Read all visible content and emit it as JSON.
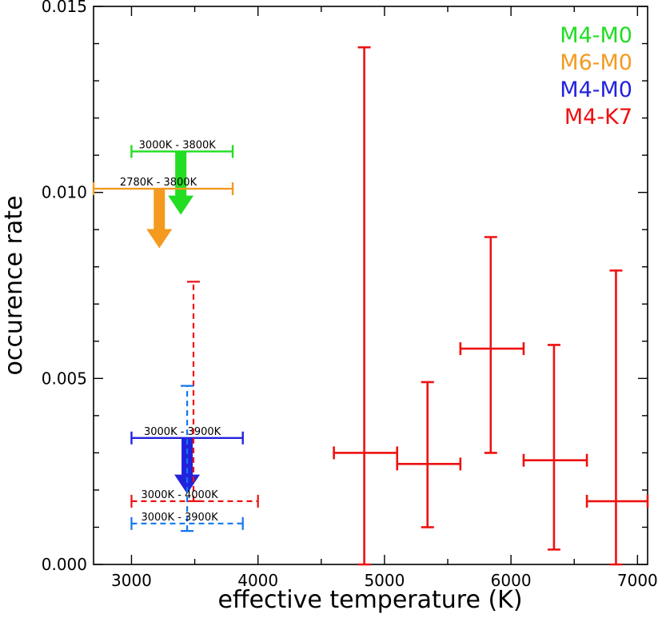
{
  "chart_data": {
    "type": "scatter",
    "xlabel": "effective temperature (K)",
    "ylabel": "occurence rate",
    "xlim": [
      2700,
      7080
    ],
    "ylim": [
      0.0,
      0.015
    ],
    "xticks": [
      {
        "v": 3000,
        "t": "3000"
      },
      {
        "v": 4000,
        "t": "4000"
      },
      {
        "v": 5000,
        "t": "5000"
      },
      {
        "v": 6000,
        "t": "6000"
      },
      {
        "v": 7000,
        "t": "7000"
      }
    ],
    "yticks": [
      {
        "v": 0.0,
        "t": "0.000"
      },
      {
        "v": 0.005,
        "t": "0.005"
      },
      {
        "v": 0.01,
        "t": "0.010"
      },
      {
        "v": 0.015,
        "t": "0.015"
      }
    ],
    "legend": [
      {
        "label": "M4-M0",
        "color": "#22dd22"
      },
      {
        "label": "M6-M0",
        "color": "#f49a1f"
      },
      {
        "label": "M4-M0",
        "color": "#2222dd"
      },
      {
        "label": "M4-K7",
        "color": "#ee1111"
      }
    ],
    "upper_limits": [
      {
        "name": "green",
        "label": "3000K - 3800K",
        "color": "#22dd22",
        "xmin": 3000,
        "xmax": 3800,
        "y": 0.0111,
        "arrow_x": 3390,
        "arrow_y_end": 0.0094
      },
      {
        "name": "orange",
        "label": "2780K - 3800K",
        "color": "#f49a1f",
        "xmin": 2700,
        "xmax": 3800,
        "y": 0.0101,
        "arrow_x": 3220,
        "arrow_y_end": 0.0085
      },
      {
        "name": "blue",
        "label": "3000K - 3900K",
        "color": "#2222dd",
        "xmin": 3000,
        "xmax": 3880,
        "y": 0.0034,
        "arrow_x": 3440,
        "arrow_y_end": 0.0019
      }
    ],
    "dashed_points": [
      {
        "name": "red-dashed",
        "label": "3000K - 4000K",
        "color": "#ee1111",
        "x": 3490,
        "y": 0.0017,
        "xmin": 3000,
        "xmax": 4000,
        "ylo": 0.0017,
        "yhi": 0.0076,
        "label_x": 3000
      },
      {
        "name": "lightblue-dashed",
        "label": "3000K - 3900K",
        "color": "#1177ee",
        "x": 3440,
        "y": 0.0011,
        "xmin": 3000,
        "xmax": 3880,
        "ylo": 0.0009,
        "yhi": 0.0048,
        "label_x": 3000
      }
    ],
    "series": [
      {
        "name": "M4-K7",
        "color": "#ee1111",
        "points": [
          {
            "x": 4840,
            "y": 0.003,
            "xmin": 4600,
            "xmax": 5100,
            "ylo": 0.0,
            "yhi": 0.0139
          },
          {
            "x": 5340,
            "y": 0.0027,
            "xmin": 5100,
            "xmax": 5600,
            "ylo": 0.001,
            "yhi": 0.0049
          },
          {
            "x": 5840,
            "y": 0.0058,
            "xmin": 5600,
            "xmax": 6100,
            "ylo": 0.003,
            "yhi": 0.0088
          },
          {
            "x": 6340,
            "y": 0.0028,
            "xmin": 6100,
            "xmax": 6600,
            "ylo": 0.0004,
            "yhi": 0.0059
          },
          {
            "x": 6830,
            "y": 0.0017,
            "xmin": 6600,
            "xmax": 7080,
            "ylo": 0.0,
            "yhi": 0.0079
          }
        ]
      }
    ]
  }
}
